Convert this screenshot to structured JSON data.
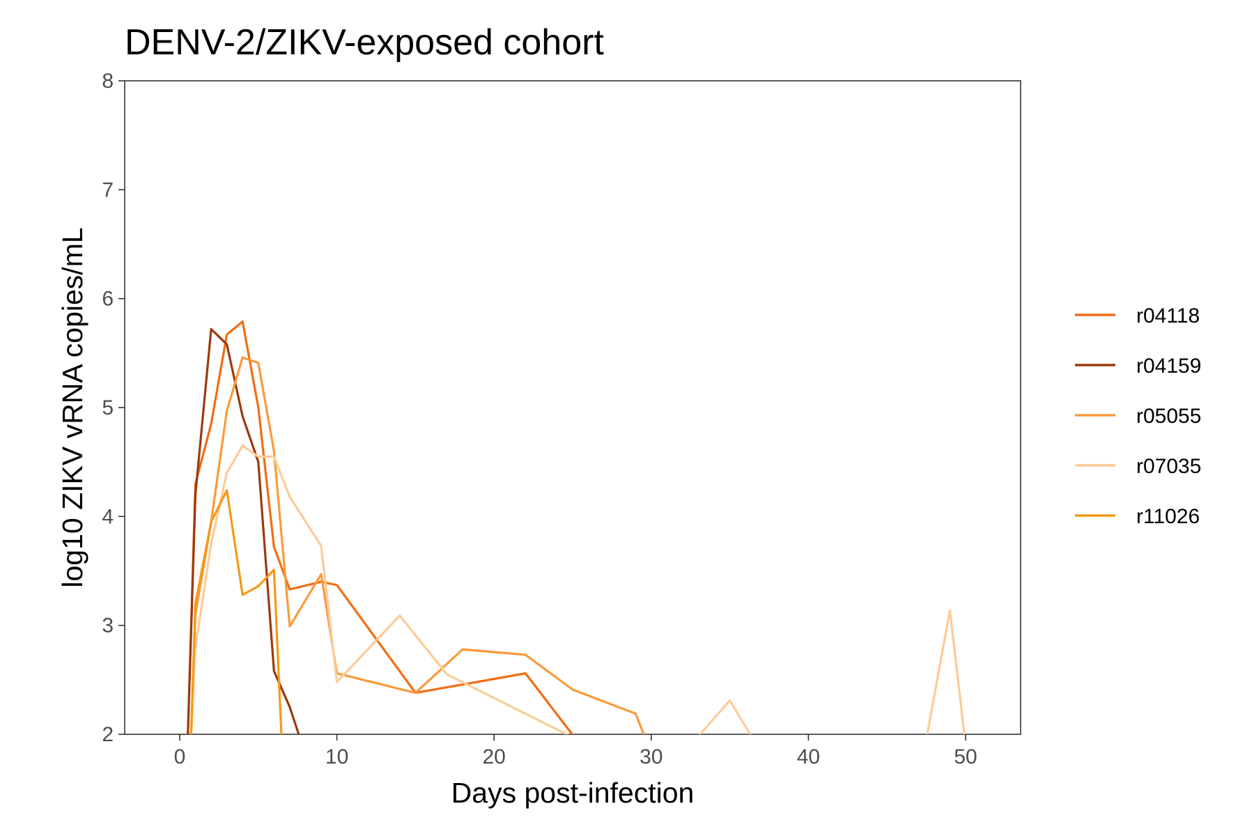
{
  "chart_data": {
    "type": "line",
    "title": "DENV-2/ZIKV-exposed cohort",
    "xlabel": "Days post-infection",
    "ylabel": "log10 ZIKV vRNA copies/mL",
    "xlim": [
      -3.5,
      53.5
    ],
    "ylim": [
      2,
      8
    ],
    "x_ticks": [
      0,
      10,
      20,
      30,
      40,
      50
    ],
    "y_ticks": [
      2,
      3,
      4,
      5,
      6,
      7,
      8
    ],
    "grid": false,
    "legend_position": "right",
    "series": [
      {
        "name": "r04118",
        "color": "#f36c13",
        "points": [
          [
            0.5,
            1.9
          ],
          [
            1,
            4.3
          ],
          [
            2,
            4.85
          ],
          [
            3,
            5.67
          ],
          [
            4,
            5.79
          ],
          [
            5,
            5.0
          ],
          [
            6,
            3.72
          ],
          [
            7,
            3.33
          ],
          [
            9,
            3.4
          ],
          [
            10,
            3.37
          ],
          [
            15,
            2.38
          ],
          [
            22,
            2.56
          ],
          [
            25.5,
            1.9
          ]
        ]
      },
      {
        "name": "r04159",
        "color": "#9a3a0c",
        "points": [
          [
            0.5,
            1.9
          ],
          [
            1,
            4.2
          ],
          [
            2,
            5.72
          ],
          [
            3,
            5.58
          ],
          [
            4,
            4.92
          ],
          [
            5,
            4.5
          ],
          [
            6,
            2.58
          ],
          [
            7,
            2.25
          ],
          [
            7.8,
            1.9
          ]
        ]
      },
      {
        "name": "r05055",
        "color": "#fa9a3a",
        "points": [
          [
            0.7,
            1.9
          ],
          [
            1,
            3.1
          ],
          [
            2,
            3.95
          ],
          [
            3,
            4.97
          ],
          [
            4,
            5.46
          ],
          [
            5,
            5.41
          ],
          [
            6,
            4.6
          ],
          [
            7,
            2.99
          ],
          [
            9,
            3.47
          ],
          [
            10,
            2.56
          ],
          [
            15,
            2.38
          ],
          [
            18,
            2.78
          ],
          [
            22,
            2.73
          ],
          [
            25,
            2.41
          ],
          [
            29,
            2.19
          ],
          [
            29.8,
            1.9
          ]
        ]
      },
      {
        "name": "r07035",
        "color": "#fdcb97",
        "points": [
          [
            0.7,
            1.9
          ],
          [
            1,
            2.8
          ],
          [
            2,
            3.75
          ],
          [
            3,
            4.4
          ],
          [
            4,
            4.65
          ],
          [
            5,
            4.55
          ],
          [
            6,
            4.55
          ],
          [
            7,
            4.18
          ],
          [
            9,
            3.73
          ],
          [
            10,
            2.48
          ],
          [
            14,
            3.09
          ],
          [
            17,
            2.55
          ],
          [
            25.3,
            1.95
          ],
          [
            32.8,
            1.95
          ],
          [
            35,
            2.31
          ],
          [
            36.5,
            1.95
          ],
          [
            47.5,
            1.95
          ],
          [
            49,
            3.14
          ],
          [
            50,
            1.9
          ]
        ]
      },
      {
        "name": "r11026",
        "color": "#f79816",
        "points": [
          [
            0.7,
            1.9
          ],
          [
            1,
            3.2
          ],
          [
            2,
            3.95
          ],
          [
            3,
            4.24
          ],
          [
            4,
            3.28
          ],
          [
            5,
            3.36
          ],
          [
            6,
            3.51
          ],
          [
            6.5,
            1.9
          ]
        ]
      }
    ]
  }
}
